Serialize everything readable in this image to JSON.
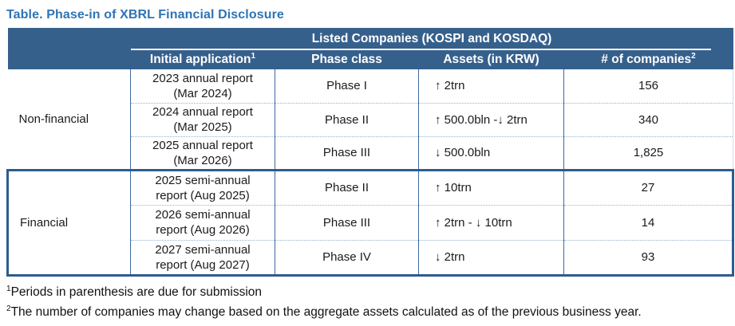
{
  "title": "Table. Phase-in of XBRL Financial Disclosure",
  "table": {
    "group_header": "Listed Companies (KOSPI and KOSDAQ)",
    "columns": [
      {
        "label": "Initial application",
        "sup": "1"
      },
      {
        "label": "Phase class",
        "sup": ""
      },
      {
        "label": "Assets (in KRW)",
        "sup": ""
      },
      {
        "label": "# of companies",
        "sup": "2"
      }
    ],
    "groups": [
      {
        "category": "Non-financial",
        "rows": [
          {
            "initial_line1": "2023 annual report",
            "initial_line2": "(Mar 2024)",
            "phase": "Phase I",
            "assets": "↑ 2trn",
            "companies": "156"
          },
          {
            "initial_line1": "2024 annual report",
            "initial_line2": "(Mar 2025)",
            "phase": "Phase II",
            "assets": "↑ 500.0bln -↓ 2trn",
            "companies": "340"
          },
          {
            "initial_line1": "2025 annual report",
            "initial_line2": "(Mar 2026)",
            "phase": "Phase III",
            "assets": "↓ 500.0bln",
            "companies": "1,825"
          }
        ]
      },
      {
        "category": "Financial",
        "rows": [
          {
            "initial_line1": "2025 semi-annual",
            "initial_line2": "report (Aug 2025)",
            "phase": "Phase II",
            "assets": "↑ 10trn",
            "companies": "27"
          },
          {
            "initial_line1": "2026 semi-annual",
            "initial_line2": "report (Aug 2026)",
            "phase": "Phase III",
            "assets": "↑ 2trn - ↓ 10trn",
            "companies": "14"
          },
          {
            "initial_line1": "2027 semi-annual",
            "initial_line2": "report (Aug 2027)",
            "phase": "Phase IV",
            "assets": "↓ 2trn",
            "companies": "93"
          }
        ]
      }
    ]
  },
  "footnotes": [
    {
      "sup": "1",
      "text": "Periods in parenthesis are due for submission"
    },
    {
      "sup": "2",
      "text": "The number of companies may change based on the aggregate assets calculated as of the previous business year."
    }
  ],
  "colors": {
    "title_color": "#2E74B5",
    "header_bg": "#36608C",
    "thick_border": "#2E5C8E",
    "column_divider": "#3C6AA0",
    "dotted_divider": "#94B3D6"
  }
}
